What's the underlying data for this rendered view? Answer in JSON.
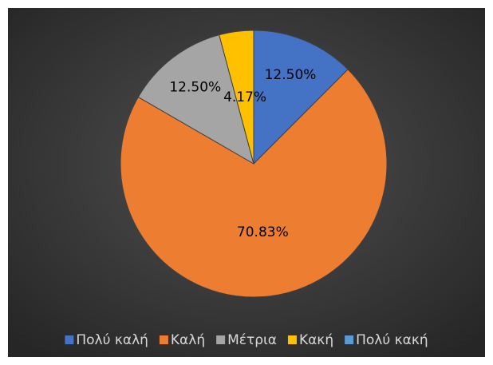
{
  "chart_data": {
    "type": "pie",
    "categories": [
      "Πολύ καλή",
      "Καλή",
      "Μέτρια",
      "Κακή",
      "Πολύ κακή"
    ],
    "values": [
      12.5,
      70.83,
      12.5,
      4.17,
      0
    ],
    "value_labels": [
      "12.50%",
      "70.83%",
      "12.50%",
      "4.17%",
      null
    ],
    "colors": [
      "#4472c4",
      "#ed7d31",
      "#a5a5a5",
      "#ffc000",
      "#5b9bd5"
    ],
    "legend": "bottom"
  }
}
